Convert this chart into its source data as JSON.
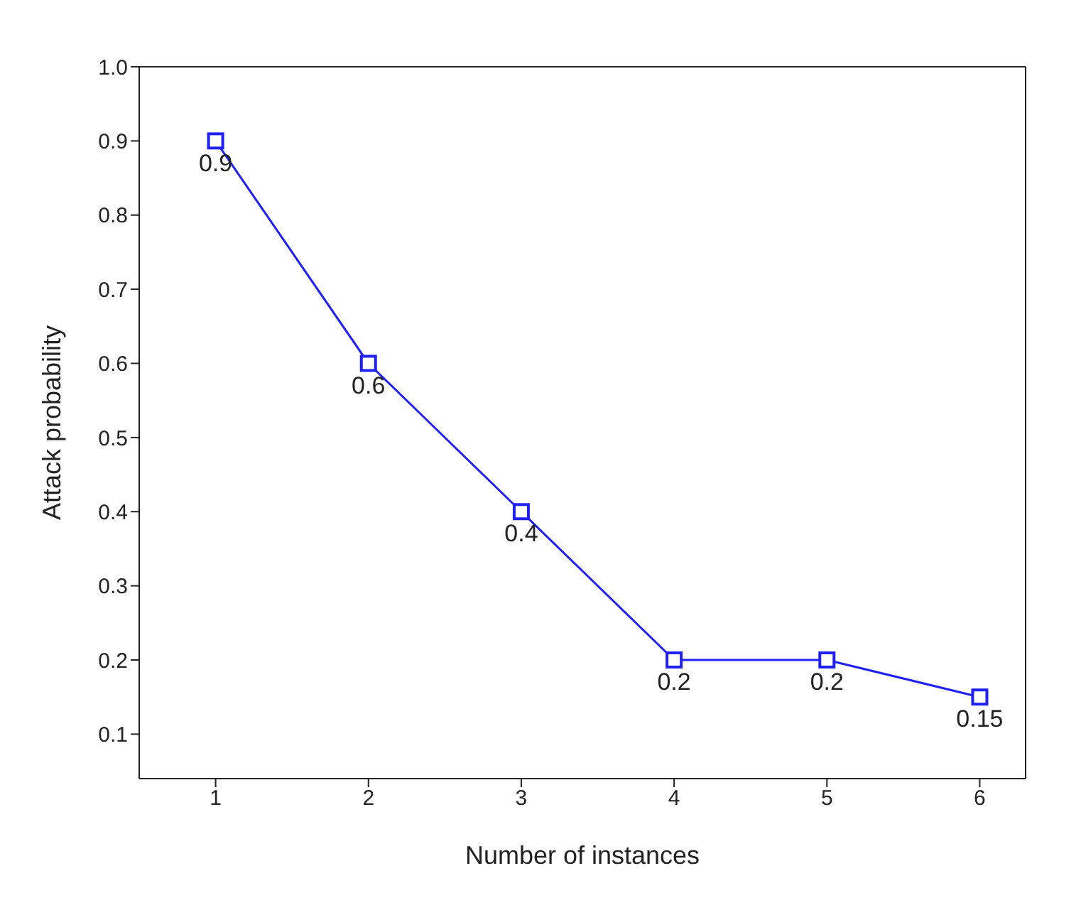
{
  "chart_data": {
    "type": "line",
    "xlabel": "Number of instances",
    "ylabel": "Attack probability",
    "x": [
      1,
      2,
      3,
      4,
      5,
      6
    ],
    "series": [
      {
        "color": "#2020f0",
        "values": [
          0.9,
          0.6,
          0.4,
          0.2,
          0.2,
          0.15
        ]
      }
    ],
    "xlim": [
      0.5,
      6.3
    ],
    "xticks": [
      1,
      2,
      3,
      4,
      5,
      6
    ],
    "ylim": [
      0.04,
      1.0
    ],
    "yticks": [
      0.1,
      0.2,
      0.3,
      0.4,
      0.5,
      0.6,
      0.7,
      0.8,
      0.9,
      {
        "value": 1,
        "label": "1.0"
      }
    ],
    "data_labels": true,
    "marker": "square",
    "line_style": "solid",
    "grid": false,
    "legend": false
  }
}
